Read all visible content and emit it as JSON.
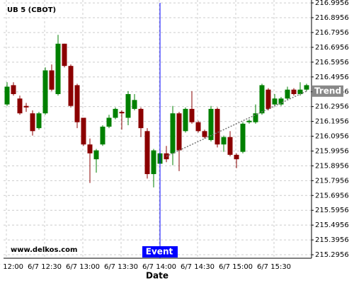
{
  "chart_data": {
    "type": "candlestick",
    "title": "UB 5 (CBOT)",
    "x_label": "Date",
    "watermark": "www.delkos.com",
    "categories": [
      "6/7 12:00",
      null,
      null,
      null,
      null,
      null,
      "6/7 12:30",
      null,
      null,
      null,
      null,
      null,
      "6/7 13:00",
      null,
      null,
      null,
      null,
      null,
      "6/7 13:30",
      null,
      null,
      null,
      null,
      null,
      "6/7 14:00",
      null,
      null,
      null,
      null,
      null,
      "6/7 14:30",
      null,
      null,
      null,
      null,
      null,
      "6/7 15:00",
      null,
      null,
      null,
      null,
      null,
      "6/7 15:30",
      null,
      null,
      null,
      null,
      null
    ],
    "open": [
      216.31,
      216.44,
      216.35,
      216.3,
      216.25,
      216.15,
      216.25,
      216.54,
      216.38,
      216.72,
      216.57,
      216.44,
      216.22,
      216.04,
      215.94,
      216.04,
      216.16,
      216.22,
      216.26,
      216.22,
      216.28,
      216.28,
      216.13,
      215.84,
      215.91,
      215.98,
      215.98,
      216.25,
      216.13,
      216.28,
      216.19,
      216.13,
      216.07,
      216.28,
      216.04,
      216.09,
      215.97,
      215.99,
      216.19,
      216.19,
      216.25,
      216.41,
      216.31,
      216.31,
      216.35,
      216.41,
      216.38,
      216.41
    ],
    "high": [
      216.46,
      216.46,
      216.37,
      216.32,
      216.27,
      216.26,
      216.56,
      216.58,
      216.78,
      216.72,
      216.58,
      216.45,
      216.22,
      216.08,
      216.01,
      216.17,
      216.24,
      216.29,
      216.27,
      216.4,
      216.38,
      216.29,
      216.15,
      216.01,
      215.99,
      216.03,
      216.3,
      216.26,
      216.29,
      216.4,
      216.2,
      216.14,
      216.3,
      216.29,
      216.1,
      216.13,
      215.98,
      216.19,
      216.21,
      216.31,
      216.45,
      216.42,
      216.38,
      216.36,
      216.43,
      216.42,
      216.46,
      216.45
    ],
    "low": [
      216.3,
      216.37,
      216.24,
      216.26,
      216.1,
      216.14,
      216.24,
      216.4,
      216.37,
      216.56,
      216.29,
      216.15,
      216.03,
      215.78,
      215.85,
      216.03,
      216.15,
      216.21,
      216.14,
      216.17,
      216.27,
      216.09,
      215.81,
      215.75,
      215.9,
      215.92,
      215.9,
      215.86,
      216.12,
      216.18,
      216.12,
      216.08,
      216.06,
      216.02,
      215.99,
      215.96,
      215.88,
      215.98,
      216.18,
      216.18,
      216.24,
      216.27,
      216.3,
      216.3,
      216.34,
      216.37,
      216.37,
      216.4
    ],
    "close": [
      216.43,
      216.38,
      216.25,
      216.29,
      216.13,
      216.25,
      216.54,
      216.41,
      216.72,
      216.57,
      216.3,
      216.19,
      216.04,
      215.98,
      216.0,
      216.16,
      216.22,
      216.28,
      216.25,
      216.38,
      216.34,
      216.15,
      215.84,
      216.0,
      215.98,
      215.94,
      216.25,
      216.0,
      216.28,
      216.19,
      216.13,
      216.09,
      216.28,
      216.04,
      216.09,
      215.97,
      215.94,
      216.18,
      216.2,
      216.25,
      216.44,
      216.28,
      216.35,
      216.35,
      216.41,
      216.38,
      216.41,
      216.44
    ],
    "up_color": "#008000",
    "down_color": "#8b0000",
    "ylim": [
      215.272,
      217.015
    ],
    "yticks": [
      216.9956,
      216.8956,
      216.7956,
      216.6956,
      216.5956,
      216.4956,
      216.3956,
      216.2956,
      216.1956,
      216.0956,
      215.9956,
      215.8956,
      215.7956,
      215.6956,
      215.5956,
      215.4956,
      215.3956,
      215.2956
    ],
    "grid": true,
    "event": {
      "index": 24,
      "label": "Event",
      "color": "#0000ff"
    },
    "trend": {
      "label": "Trend",
      "start_index": 25,
      "start_value": 215.96,
      "end_index": 47,
      "end_value": 216.4
    }
  }
}
